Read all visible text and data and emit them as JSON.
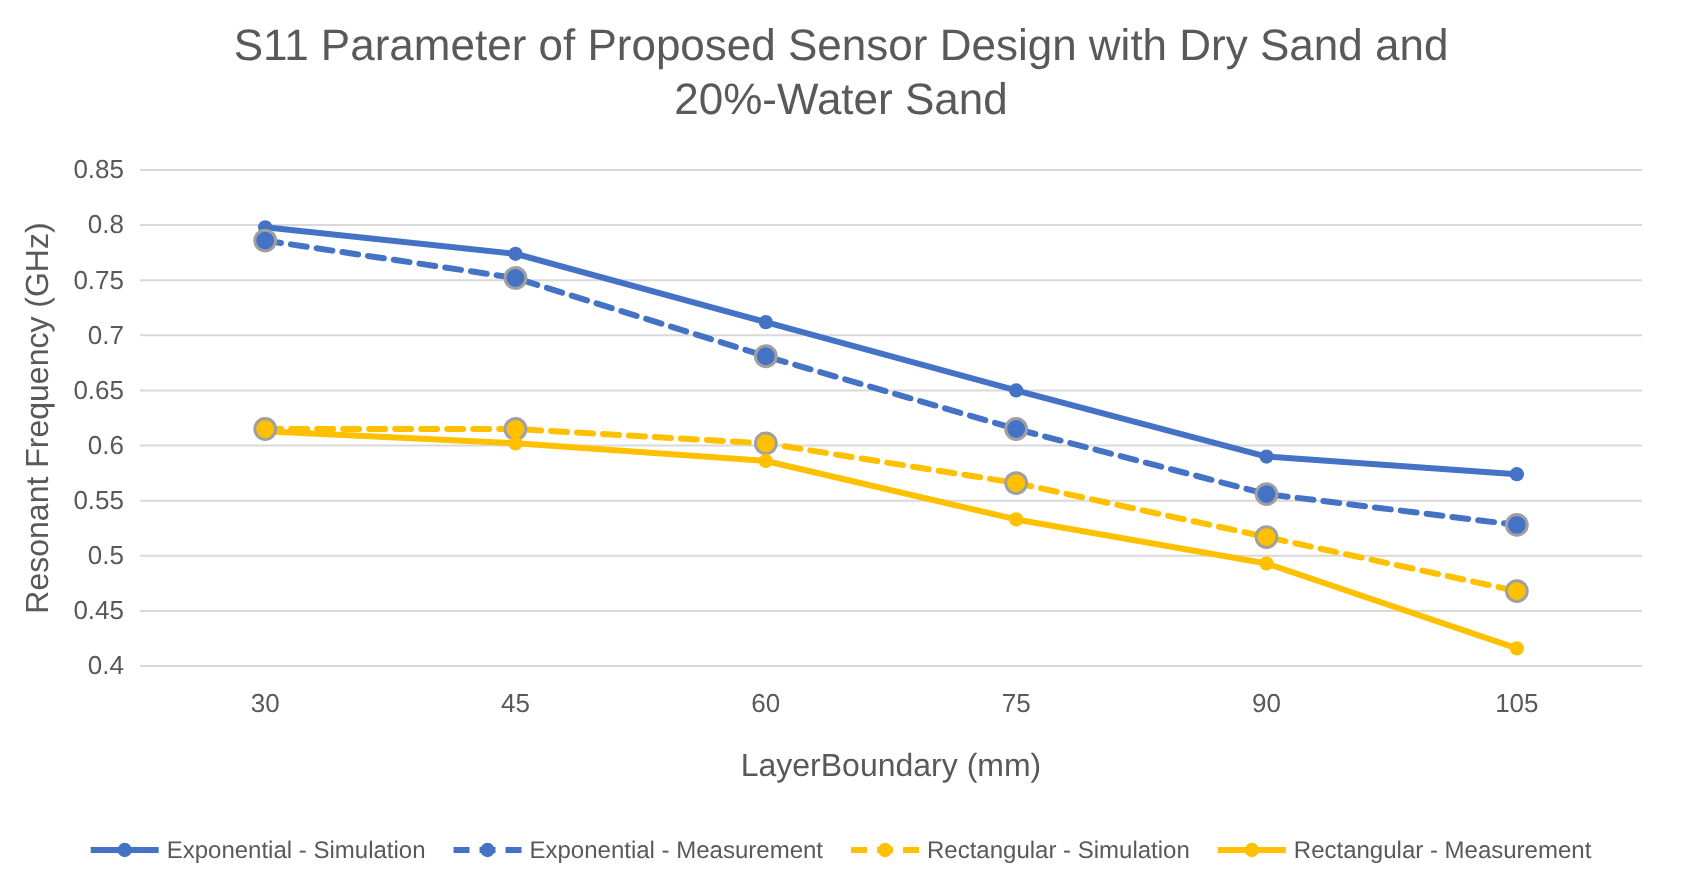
{
  "chart_data": {
    "type": "line",
    "title": "S11 Parameter of Proposed Sensor Design with Dry Sand and 20%-Water Sand",
    "xlabel": "LayerBoundary (mm)",
    "ylabel": "Resonant Frequency (GHz)",
    "categories": [
      "30",
      "45",
      "60",
      "75",
      "90",
      "105"
    ],
    "series": [
      {
        "name": "Exponential - Simulation",
        "color": "#4472c4",
        "line_style": "solid",
        "values": [
          0.798,
          0.774,
          0.712,
          0.65,
          0.59,
          0.574
        ]
      },
      {
        "name": "Exponential - Measurement",
        "color": "#4472c4",
        "line_style": "dashed",
        "values": [
          0.786,
          0.752,
          0.681,
          0.615,
          0.556,
          0.528
        ]
      },
      {
        "name": "Rectangular - Simulation",
        "color": "#ffc000",
        "line_style": "dashed",
        "values": [
          0.615,
          0.615,
          0.602,
          0.566,
          0.517,
          0.468
        ]
      },
      {
        "name": "Rectangular - Measurement",
        "color": "#ffc000",
        "line_style": "solid",
        "values": [
          0.613,
          0.602,
          0.586,
          0.533,
          0.493,
          0.416
        ]
      }
    ],
    "ylim": [
      0.4,
      0.85
    ],
    "yticks": [
      0.4,
      0.45,
      0.5,
      0.55,
      0.6,
      0.65,
      0.7,
      0.75,
      0.8,
      0.85
    ],
    "grid": "y",
    "legend": "bottom",
    "marker": "circle"
  }
}
